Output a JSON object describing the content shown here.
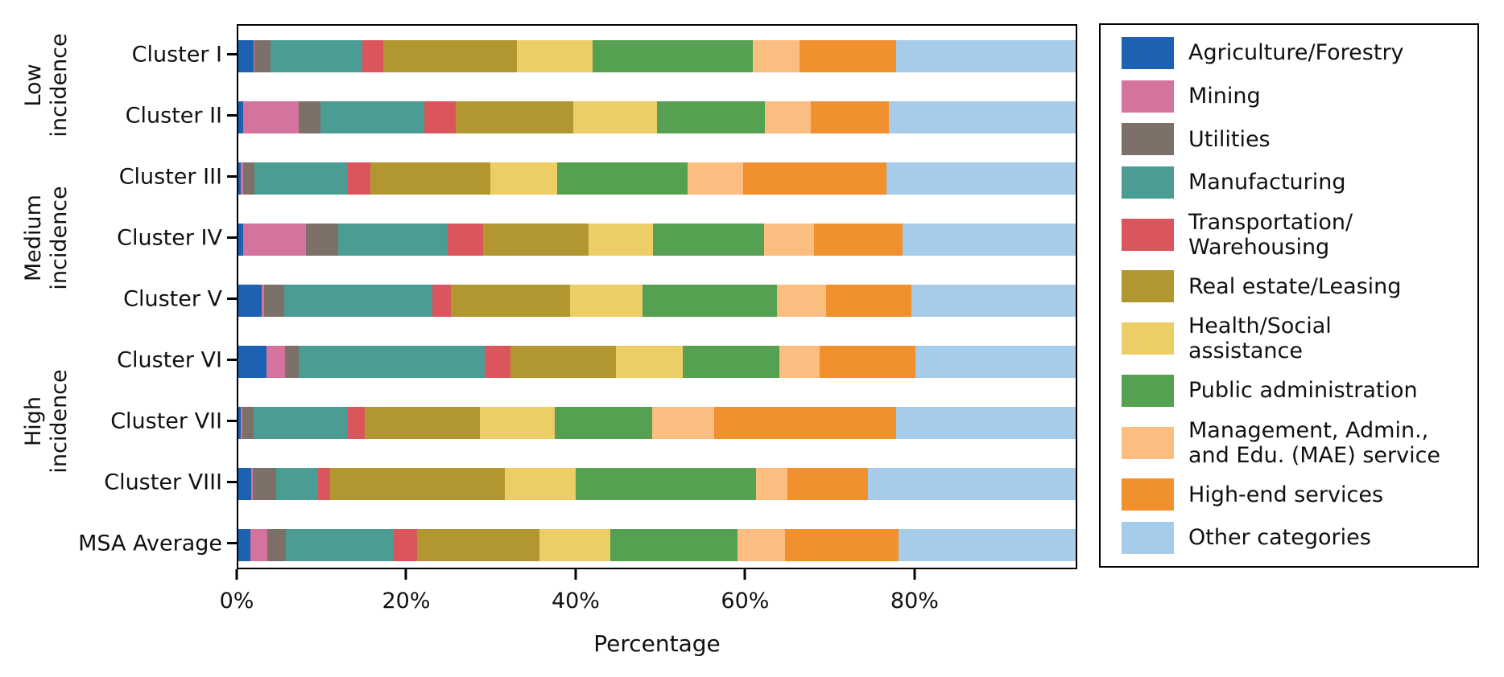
{
  "chart_data": {
    "type": "bar",
    "orientation": "horizontal",
    "stacked": true,
    "title": "",
    "xlabel": "Percentage",
    "ylabel": "",
    "grid": false,
    "legend_position": "right",
    "x_tick_labels": [
      "0%",
      "20%",
      "40%",
      "60%",
      "80%"
    ],
    "x_tick_values": [
      0,
      20,
      40,
      60,
      80
    ],
    "xlim": [
      0,
      99.2
    ],
    "categories": [
      "Cluster I",
      "Cluster II",
      "Cluster III",
      "Cluster IV",
      "Cluster V",
      "Cluster VI",
      "Cluster VII",
      "Cluster VIII",
      "MSA Average"
    ],
    "category_groups": [
      {
        "label": "Low\nincidence",
        "rows": [
          0,
          1
        ]
      },
      {
        "label": "Medium\nincidence",
        "rows": [
          2,
          4
        ]
      },
      {
        "label": "High\nincidence",
        "rows": [
          5,
          7
        ]
      }
    ],
    "series": [
      {
        "name": "Agriculture/Forestry",
        "legend_lines": "Agriculture/Forestry",
        "color": "#1c61b2",
        "values": [
          1.8,
          0.6,
          0.3,
          0.6,
          2.8,
          3.3,
          0.3,
          1.5,
          1.4
        ]
      },
      {
        "name": "Mining",
        "legend_lines": "Mining",
        "color": "#d4739d",
        "values": [
          0.1,
          6.6,
          0.3,
          7.4,
          0.3,
          2.2,
          0.2,
          0.2,
          2.0
        ]
      },
      {
        "name": "Utilities",
        "legend_lines": "Utilities",
        "color": "#7d7068",
        "values": [
          1.9,
          2.5,
          1.3,
          3.8,
          2.3,
          1.7,
          1.3,
          2.8,
          2.2
        ]
      },
      {
        "name": "Manufacturing",
        "legend_lines": "Manufacturing",
        "color": "#4b9c93",
        "values": [
          10.9,
          12.3,
          11.1,
          13.0,
          17.6,
          22.0,
          11.2,
          4.9,
          12.8
        ]
      },
      {
        "name": "Transportation/Warehousing",
        "legend_lines": "Transportation/\nWarehousing",
        "color": "#db555d",
        "values": [
          2.5,
          3.8,
          2.6,
          4.2,
          2.2,
          3.0,
          2.0,
          1.5,
          2.8
        ]
      },
      {
        "name": "Real estate/Leasing",
        "legend_lines": "Real estate/Leasing",
        "color": "#b2962f",
        "values": [
          15.8,
          13.9,
          14.3,
          12.5,
          14.1,
          12.5,
          13.6,
          20.7,
          14.5
        ]
      },
      {
        "name": "Health/Social assistance",
        "legend_lines": "Health/Social\nassistance",
        "color": "#eccd66",
        "values": [
          9.0,
          9.9,
          7.9,
          7.6,
          8.6,
          8.0,
          8.9,
          8.4,
          8.4
        ]
      },
      {
        "name": "Public administration",
        "legend_lines": "Public administration",
        "color": "#56a052",
        "values": [
          19.0,
          12.8,
          15.4,
          13.2,
          15.9,
          11.4,
          11.5,
          21.3,
          15.0
        ]
      },
      {
        "name": "Management, Admin., and Edu. (MAE) service",
        "legend_lines": "Management, Admin.,\nand Edu. (MAE) service",
        "color": "#fcbd80",
        "values": [
          5.5,
          5.4,
          6.6,
          5.9,
          5.8,
          4.8,
          7.4,
          3.8,
          5.7
        ]
      },
      {
        "name": "High-end services",
        "legend_lines": "High-end services",
        "color": "#f0902e",
        "values": [
          11.4,
          9.3,
          17.0,
          10.5,
          10.1,
          11.3,
          21.5,
          9.5,
          13.4
        ]
      },
      {
        "name": "Other categories",
        "legend_lines": "Other categories",
        "color": "#a6cce9",
        "values": [
          22.1,
          22.9,
          23.2,
          21.3,
          20.3,
          19.8,
          22.1,
          25.4,
          21.8
        ]
      }
    ]
  }
}
